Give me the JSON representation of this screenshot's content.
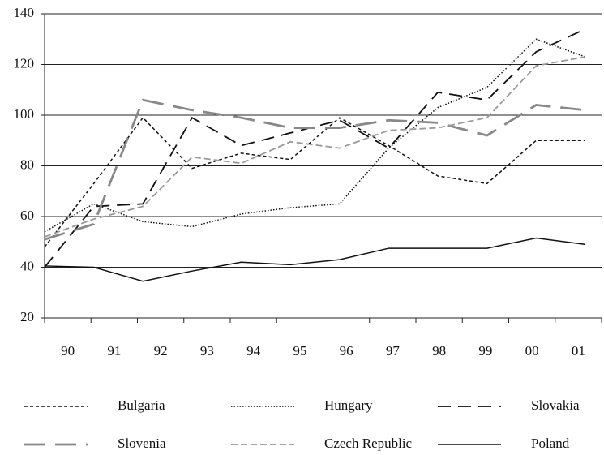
{
  "chart_data": {
    "type": "line",
    "categories": [
      "90",
      "91",
      "92",
      "93",
      "94",
      "95",
      "96",
      "97",
      "98",
      "99",
      "00",
      "01"
    ],
    "series": [
      {
        "name": "Bulgaria",
        "color": "#111111",
        "values": [
          48,
          73,
          99,
          79,
          85,
          82.5,
          99,
          88,
          76,
          73,
          90,
          90
        ]
      },
      {
        "name": "Hungary",
        "color": "#111111",
        "values": [
          54,
          65,
          58,
          56,
          61,
          63.5,
          65,
          87,
          103,
          111,
          130,
          123
        ]
      },
      {
        "name": "Slovakia",
        "color": "#111111",
        "values": [
          40,
          64,
          65,
          99,
          88,
          93,
          98,
          87,
          109,
          106,
          125,
          134
        ]
      },
      {
        "name": "Slovenia",
        "color": "#888888",
        "values": [
          51,
          57,
          106,
          102,
          99,
          95,
          95,
          98,
          97,
          92,
          104,
          102
        ]
      },
      {
        "name": "Czech Republic",
        "color": "#999999",
        "values": [
          52,
          59,
          64,
          83.5,
          81,
          89.5,
          87,
          94,
          95,
          99,
          119.5,
          123
        ]
      },
      {
        "name": "Poland",
        "color": "#111111",
        "values": [
          40.5,
          40,
          34.5,
          38.5,
          42,
          41,
          43,
          47.5,
          47.5,
          47.5,
          51.5,
          49
        ]
      }
    ],
    "ylim": [
      20,
      140
    ],
    "yticks": [
      20,
      40,
      60,
      80,
      100,
      120,
      140
    ],
    "grid": true
  }
}
